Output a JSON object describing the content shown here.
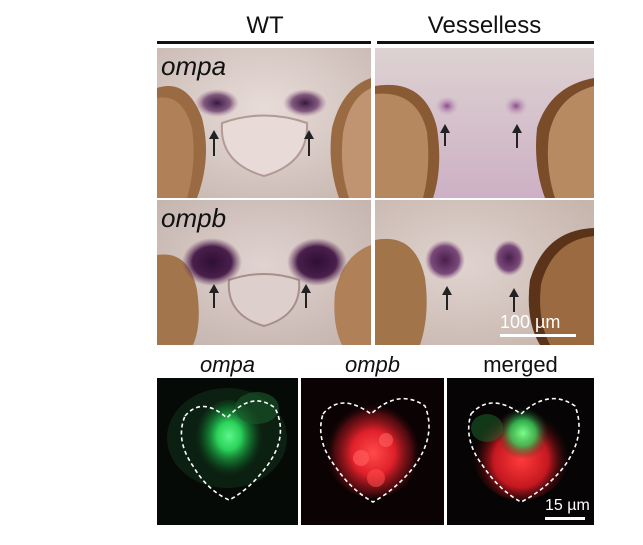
{
  "columns": {
    "wt": "WT",
    "vesselless": "Vesselless"
  },
  "rows": [
    {
      "gene": "ompa"
    },
    {
      "gene": "ompb"
    }
  ],
  "bottom_labels": {
    "left": "ompa",
    "middle": "ompb",
    "right": "merged"
  },
  "scale_top": "100 µm",
  "scale_bottom": "15 µm",
  "colors": {
    "stain": "#4a1f4c",
    "tissue_brown": "#8a5a34",
    "green_channel": "#2bd35a",
    "red_channel": "#e0202a",
    "outline": "#ffffff"
  }
}
